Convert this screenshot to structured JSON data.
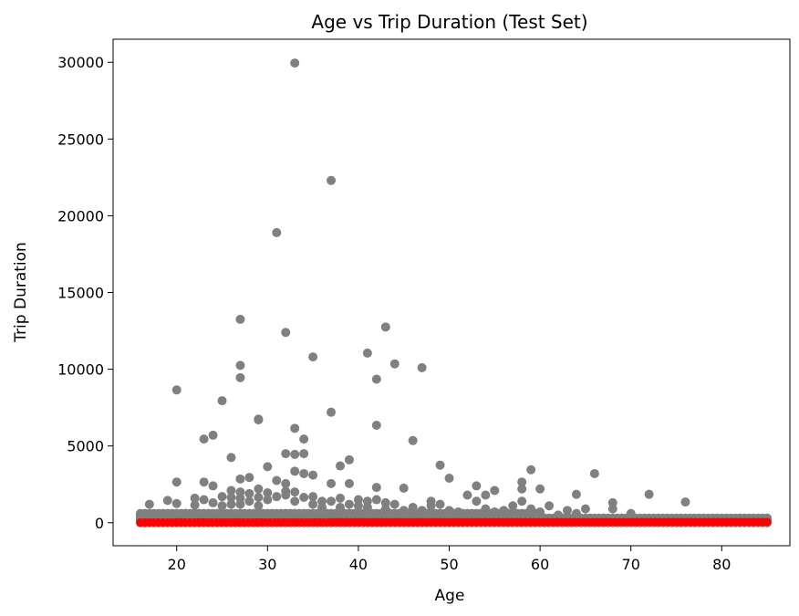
{
  "chart_data": {
    "type": "scatter",
    "title": "Age vs Trip Duration (Test Set)",
    "xlabel": "Age",
    "ylabel": "Trip Duration",
    "xlim": [
      13,
      87.5
    ],
    "ylim": [
      -1500,
      31500
    ],
    "xticks": [
      20,
      30,
      40,
      50,
      60,
      70,
      80
    ],
    "yticks": [
      0,
      5000,
      10000,
      15000,
      20000,
      25000,
      30000
    ],
    "grid": false,
    "series": [
      {
        "role": "actual",
        "color": "#808080",
        "points": [
          [
            16,
            0
          ],
          [
            17,
            1200
          ],
          [
            18,
            300
          ],
          [
            19,
            1450
          ],
          [
            20,
            8650
          ],
          [
            20,
            2650
          ],
          [
            20,
            1250
          ],
          [
            21,
            600
          ],
          [
            22,
            1600
          ],
          [
            22,
            1150
          ],
          [
            23,
            5450
          ],
          [
            23,
            2650
          ],
          [
            23,
            1500
          ],
          [
            24,
            5700
          ],
          [
            24,
            2400
          ],
          [
            24,
            1300
          ],
          [
            25,
            7950
          ],
          [
            25,
            1700
          ],
          [
            25,
            1100
          ],
          [
            26,
            4250
          ],
          [
            26,
            2100
          ],
          [
            26,
            1650
          ],
          [
            26,
            1200
          ],
          [
            27,
            13250
          ],
          [
            27,
            10250
          ],
          [
            27,
            9450
          ],
          [
            27,
            2850
          ],
          [
            27,
            2000
          ],
          [
            27,
            1600
          ],
          [
            27,
            1200
          ],
          [
            28,
            2950
          ],
          [
            28,
            1900
          ],
          [
            28,
            1400
          ],
          [
            29,
            6750
          ],
          [
            29,
            6700
          ],
          [
            29,
            2200
          ],
          [
            29,
            1650
          ],
          [
            29,
            1100
          ],
          [
            30,
            3650
          ],
          [
            30,
            1950
          ],
          [
            30,
            1500
          ],
          [
            31,
            18900
          ],
          [
            31,
            2750
          ],
          [
            31,
            1700
          ],
          [
            32,
            12400
          ],
          [
            32,
            4500
          ],
          [
            32,
            2550
          ],
          [
            32,
            2050
          ],
          [
            32,
            1800
          ],
          [
            33,
            29950
          ],
          [
            33,
            6150
          ],
          [
            33,
            4450
          ],
          [
            33,
            3350
          ],
          [
            33,
            2000
          ],
          [
            33,
            1400
          ],
          [
            34,
            5450
          ],
          [
            34,
            4500
          ],
          [
            34,
            3200
          ],
          [
            34,
            1650
          ],
          [
            35,
            10800
          ],
          [
            35,
            3100
          ],
          [
            35,
            1700
          ],
          [
            35,
            1200
          ],
          [
            36,
            1400
          ],
          [
            36,
            1000
          ],
          [
            37,
            22300
          ],
          [
            37,
            7200
          ],
          [
            37,
            2550
          ],
          [
            37,
            1400
          ],
          [
            38,
            3700
          ],
          [
            38,
            1600
          ],
          [
            38,
            1000
          ],
          [
            39,
            4100
          ],
          [
            39,
            2550
          ],
          [
            39,
            1200
          ],
          [
            40,
            1500
          ],
          [
            40,
            1100
          ],
          [
            41,
            11050
          ],
          [
            41,
            1400
          ],
          [
            41,
            1000
          ],
          [
            42,
            9350
          ],
          [
            42,
            6350
          ],
          [
            42,
            2300
          ],
          [
            42,
            1500
          ],
          [
            43,
            12750
          ],
          [
            43,
            1300
          ],
          [
            43,
            900
          ],
          [
            44,
            10350
          ],
          [
            44,
            1200
          ],
          [
            45,
            2250
          ],
          [
            45,
            800
          ],
          [
            46,
            5350
          ],
          [
            46,
            1000
          ],
          [
            47,
            10100
          ],
          [
            47,
            800
          ],
          [
            48,
            1400
          ],
          [
            48,
            1100
          ],
          [
            49,
            3750
          ],
          [
            49,
            1200
          ],
          [
            50,
            2900
          ],
          [
            50,
            800
          ],
          [
            51,
            700
          ],
          [
            52,
            1800
          ],
          [
            52,
            500
          ],
          [
            53,
            2400
          ],
          [
            53,
            1400
          ],
          [
            54,
            1800
          ],
          [
            54,
            900
          ],
          [
            55,
            2100
          ],
          [
            55,
            700
          ],
          [
            56,
            800
          ],
          [
            57,
            1100
          ],
          [
            58,
            2650
          ],
          [
            58,
            2200
          ],
          [
            58,
            1400
          ],
          [
            59,
            3450
          ],
          [
            59,
            900
          ],
          [
            60,
            2200
          ],
          [
            60,
            700
          ],
          [
            61,
            1100
          ],
          [
            62,
            500
          ],
          [
            63,
            800
          ],
          [
            64,
            1850
          ],
          [
            64,
            600
          ],
          [
            65,
            900
          ],
          [
            66,
            3200
          ],
          [
            67,
            300
          ],
          [
            68,
            1300
          ],
          [
            68,
            900
          ],
          [
            69,
            300
          ],
          [
            70,
            600
          ],
          [
            72,
            1850
          ],
          [
            73,
            200
          ],
          [
            76,
            1350
          ],
          [
            78,
            200
          ],
          [
            85,
            0
          ]
        ]
      },
      {
        "role": "predicted",
        "color": "#ff0000",
        "x_range": [
          16,
          85
        ],
        "y_start": 20,
        "y_end": 50
      }
    ]
  }
}
